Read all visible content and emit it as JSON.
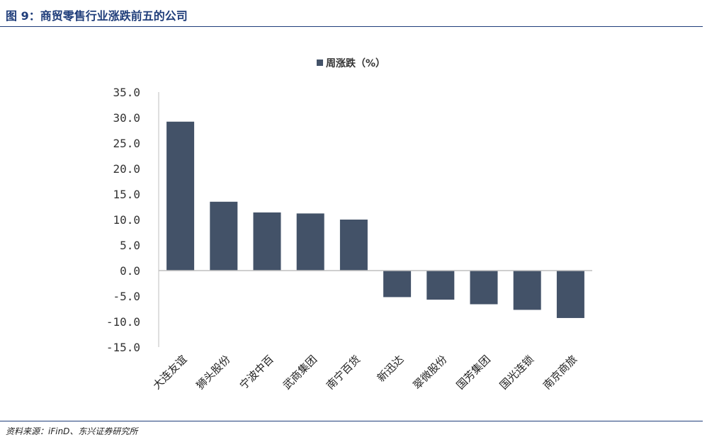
{
  "figure": {
    "title": "图 9：商贸零售行业涨跌前五的公司",
    "source": "资料来源：iFinD、东兴证券研究所"
  },
  "colors": {
    "bar": "#435268",
    "title": "#1f3d7a",
    "rule": "#1f3d7a",
    "axis": "#bfbfbf"
  },
  "chart_data": {
    "type": "bar",
    "categories": [
      "大连友谊",
      "狮头股份",
      "宁波中百",
      "武商集团",
      "南宁百货",
      "新迅达",
      "翠微股份",
      "国芳集团",
      "国光连锁",
      "南京商旅"
    ],
    "series": [
      {
        "name": "周涨跌（%）",
        "values": [
          29.2,
          13.5,
          11.4,
          11.2,
          10.0,
          -5.2,
          -5.7,
          -6.6,
          -7.7,
          -9.3
        ]
      }
    ],
    "yticks": [
      "35.0",
      "30.0",
      "25.0",
      "20.0",
      "15.0",
      "10.0",
      "5.0",
      "0.0",
      "-5.0",
      "-10.0",
      "-15.0"
    ],
    "ylim": [
      -15,
      35
    ],
    "legend_position": "top-center",
    "grid": false
  }
}
